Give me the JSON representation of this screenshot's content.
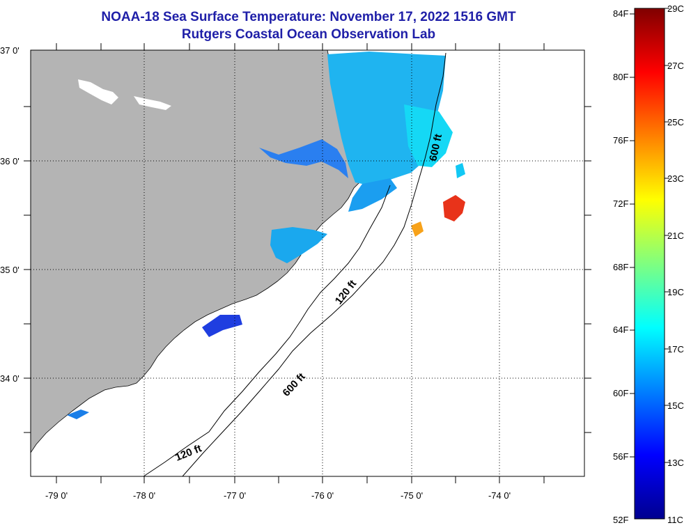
{
  "title": {
    "line1": "NOAA-18 Sea Surface Temperature:  November 17, 2022 1516 GMT",
    "line2": "Rutgers Coastal Ocean Observation Lab"
  },
  "map": {
    "lat_labels": [
      "37 0'",
      "36 0'",
      "35 0'",
      "34 0'"
    ],
    "lon_labels": [
      "-79 0'",
      "-78 0'",
      "-77 0'",
      "-76 0'",
      "-75 0'",
      "-74 0'"
    ],
    "depth_labels": [
      "600 ft",
      "120 ft",
      "600 ft",
      "120 ft"
    ],
    "land_color": "#b4b4b4",
    "ocean_color": "#ffffff"
  },
  "colorbar": {
    "fahrenheit_labels": [
      "84F",
      "80F",
      "76F",
      "72F",
      "68F",
      "64F",
      "60F",
      "56F",
      "52F"
    ],
    "celsius_labels": [
      "29C",
      "27C",
      "25C",
      "23C",
      "21C",
      "19C",
      "17C",
      "15C",
      "13C",
      "11C"
    ],
    "colormap": "jet",
    "range_celsius": [
      11,
      29
    ]
  }
}
